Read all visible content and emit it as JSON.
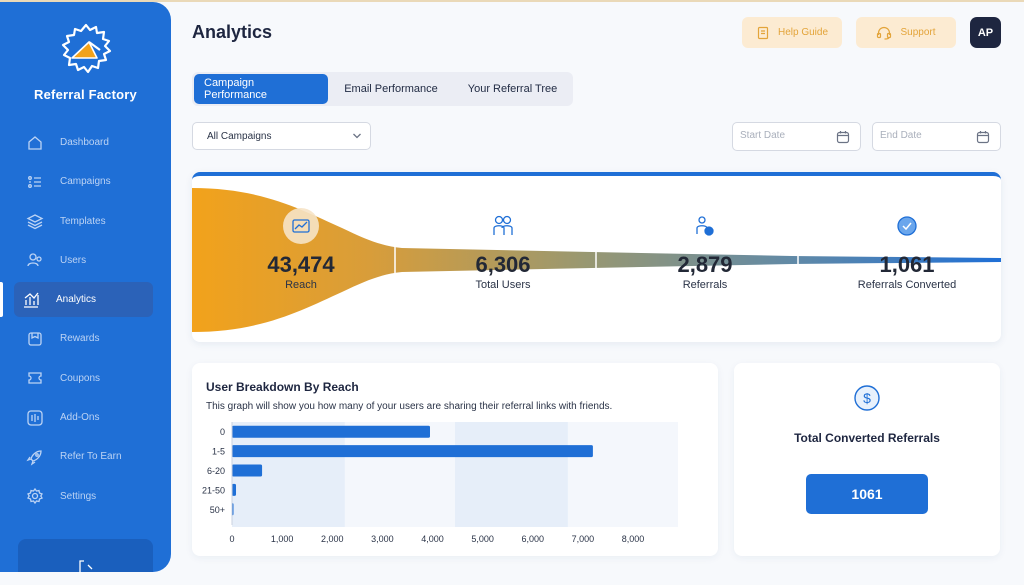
{
  "app": {
    "brand": "Referral Factory"
  },
  "sidebar": {
    "items": [
      {
        "label": "Dashboard",
        "icon": "home-icon"
      },
      {
        "label": "Campaigns",
        "icon": "campaigns-icon"
      },
      {
        "label": "Templates",
        "icon": "layers-icon"
      },
      {
        "label": "Users",
        "icon": "users-icon"
      },
      {
        "label": "Analytics",
        "icon": "analytics-icon",
        "active": true
      },
      {
        "label": "Rewards",
        "icon": "gift-icon"
      },
      {
        "label": "Coupons",
        "icon": "ticket-icon"
      },
      {
        "label": "Add-Ons",
        "icon": "addons-icon"
      },
      {
        "label": "Refer To Earn",
        "icon": "rocket-icon"
      },
      {
        "label": "Settings",
        "icon": "gear-icon"
      }
    ]
  },
  "header": {
    "title": "Analytics",
    "help_label": "Help Guide",
    "support_label": "Support",
    "avatar_initials": "AP"
  },
  "tabs": [
    {
      "label": "Campaign Performance",
      "active": true
    },
    {
      "label": "Email Performance"
    },
    {
      "label": "Your Referral Tree"
    }
  ],
  "filters": {
    "campaign_value": "All Campaigns",
    "start_placeholder": "Start Date",
    "end_placeholder": "End Date"
  },
  "funnel": {
    "stages": [
      {
        "value": "43,474",
        "label": "Reach",
        "icon": "chart-icon"
      },
      {
        "value": "6,306",
        "label": "Total Users",
        "icon": "users-icon"
      },
      {
        "value": "2,879",
        "label": "Referrals",
        "icon": "referral-icon"
      },
      {
        "value": "1,061",
        "label": "Referrals Converted",
        "icon": "check-circle-icon"
      }
    ]
  },
  "breakdown": {
    "title": "User Breakdown By Reach",
    "subtitle": "This graph will show you how many of your users are sharing their referral links with friends."
  },
  "chart_data": {
    "type": "bar",
    "orientation": "horizontal",
    "title": "User Breakdown By Reach",
    "categories": [
      "0",
      "1-5",
      "6-20",
      "21-50",
      "50+"
    ],
    "values": [
      3950,
      7200,
      600,
      80,
      30
    ],
    "xlim": [
      0,
      8000
    ],
    "xticks": [
      "0",
      "1,000",
      "2,000",
      "3,000",
      "4,000",
      "5,000",
      "6,000",
      "7,000",
      "8,000"
    ],
    "bar_color": "#1f6fd6"
  },
  "converted": {
    "title": "Total Converted Referrals",
    "value": "1061"
  },
  "colors": {
    "primary": "#1f6fd6",
    "sidebar": "#1f6fd6",
    "accent_orange": "#f2a21b",
    "help_bg": "#fcebd2"
  }
}
